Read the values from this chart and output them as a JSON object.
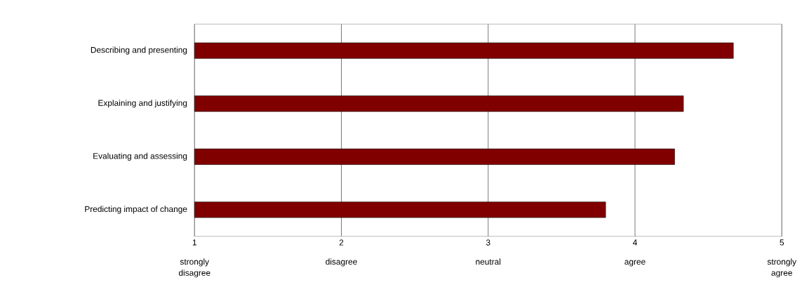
{
  "chart_data": {
    "type": "bar",
    "orientation": "horizontal",
    "categories": [
      "Describing and presenting",
      "Explaining and justifying",
      "Evaluating and assessing",
      "Predicting impact of change"
    ],
    "values": [
      4.67,
      4.33,
      4.27,
      3.8
    ],
    "color": "#800000",
    "xlim": [
      1,
      5
    ],
    "xticks": [
      1,
      2,
      3,
      4,
      5
    ],
    "grid": "x",
    "annotations": [
      "strongly disagree",
      "disagree",
      "neutral",
      "agree",
      "strongly agree"
    ]
  }
}
